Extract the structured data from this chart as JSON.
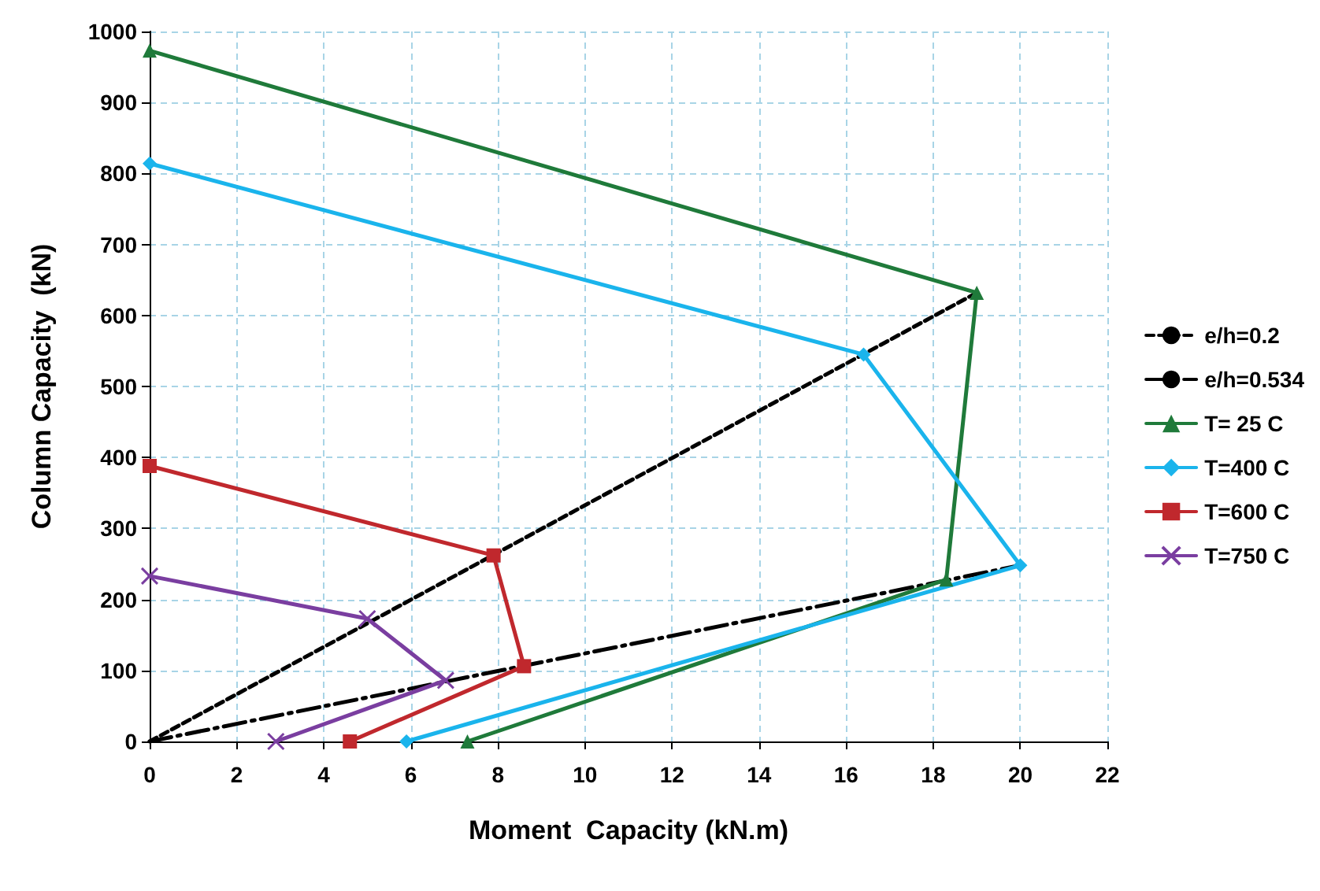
{
  "chart_data": {
    "type": "line",
    "xlabel": "Moment  Capacity (kN.m)",
    "ylabel": "Column Capacity  (kN)",
    "xlim": [
      0,
      22
    ],
    "xticks": [
      0,
      2,
      4,
      6,
      8,
      10,
      12,
      14,
      16,
      18,
      20,
      22
    ],
    "ylim": [
      0,
      1000
    ],
    "yticks": [
      0,
      100,
      200,
      300,
      400,
      500,
      600,
      700,
      800,
      900,
      1000
    ],
    "grid": true,
    "legend": "right",
    "series": [
      {
        "name": "e/h=0.2",
        "color": "#000000",
        "line_style": "dashed",
        "marker": "none",
        "x": [
          0,
          19.0
        ],
        "values": [
          0,
          632
        ]
      },
      {
        "name": "e/h=0.534",
        "color": "#000000",
        "line_style": "dashdot",
        "marker": "none",
        "x": [
          0,
          20.0
        ],
        "values": [
          0,
          248
        ]
      },
      {
        "name": "T= 25 C",
        "color": "#1f7a3a",
        "line_style": "solid",
        "marker": "triangle",
        "x": [
          0,
          19.0,
          18.3,
          7.3
        ],
        "values": [
          973,
          632,
          228,
          0
        ]
      },
      {
        "name": "T=400 C",
        "color": "#1ab4ec",
        "line_style": "solid",
        "marker": "diamond",
        "x": [
          0,
          16.4,
          20.0,
          5.9
        ],
        "values": [
          814,
          545,
          248,
          0
        ]
      },
      {
        "name": "T=600 C",
        "color": "#c0282d",
        "line_style": "solid",
        "marker": "square",
        "x": [
          0,
          7.9,
          8.6,
          4.6
        ],
        "values": [
          388,
          262,
          106,
          0
        ]
      },
      {
        "name": "T=750 C",
        "color": "#7a3ea0",
        "line_style": "solid",
        "marker": "cross",
        "x": [
          0,
          5.0,
          6.8,
          2.9
        ],
        "values": [
          233,
          173,
          86,
          0
        ]
      }
    ]
  }
}
